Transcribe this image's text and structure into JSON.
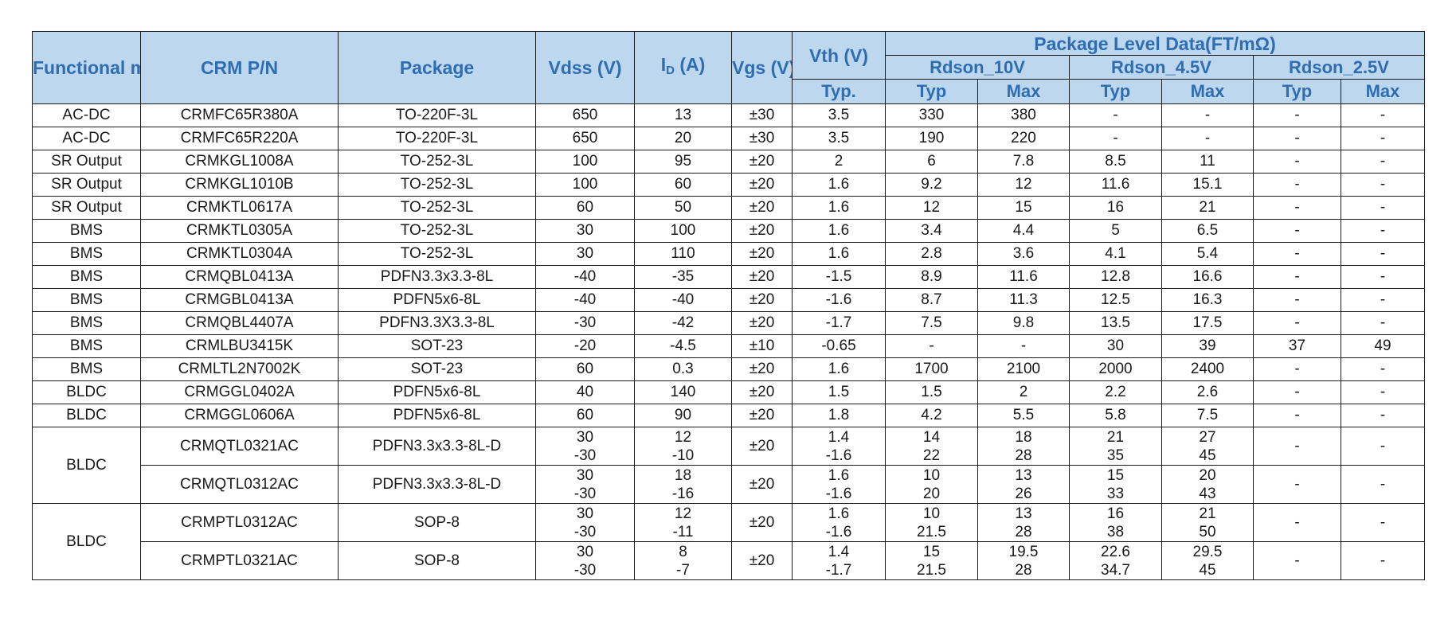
{
  "headers": {
    "functional_module": [
      "Functional",
      "module"
    ],
    "crm_pn": "CRM P/N",
    "package": "Package",
    "vdss": "Vdss (V)",
    "id": {
      "base": "I",
      "sub": "D",
      "unit": "(A)"
    },
    "vgs": [
      "Vgs",
      "(V)"
    ],
    "vth": "Vth (V)",
    "vth_sub": "Typ.",
    "package_level": "Package Level Data(FT/mΩ)",
    "rdson_10v": "Rdson_10V",
    "rdson_4v5": "Rdson_4.5V",
    "rdson_2v5": "Rdson_2.5V",
    "typ": "Typ",
    "max": "Max"
  },
  "rows": [
    {
      "module": "AC-DC",
      "pn": "CRMFC65R380A",
      "pkg": "TO-220F-3L",
      "vdss": "650",
      "id": "13",
      "vgs": "±30",
      "vth": "3.5",
      "r10t": "330",
      "r10m": "380",
      "r45t": "-",
      "r45m": "-",
      "r25t": "-",
      "r25m": "-"
    },
    {
      "module": "AC-DC",
      "pn": "CRMFC65R220A",
      "pkg": "TO-220F-3L",
      "vdss": "650",
      "id": "20",
      "vgs": "±30",
      "vth": "3.5",
      "r10t": "190",
      "r10m": "220",
      "r45t": "-",
      "r45m": "-",
      "r25t": "-",
      "r25m": "-"
    },
    {
      "module": "SR Output",
      "pn": "CRMKGL1008A",
      "pkg": "TO-252-3L",
      "vdss": "100",
      "id": "95",
      "vgs": "±20",
      "vth": "2",
      "r10t": "6",
      "r10m": "7.8",
      "r45t": "8.5",
      "r45m": "11",
      "r25t": "-",
      "r25m": "-"
    },
    {
      "module": "SR Output",
      "pn": "CRMKGL1010B",
      "pkg": "TO-252-3L",
      "vdss": "100",
      "id": "60",
      "vgs": "±20",
      "vth": "1.6",
      "r10t": "9.2",
      "r10m": "12",
      "r45t": "11.6",
      "r45m": "15.1",
      "r25t": "-",
      "r25m": "-"
    },
    {
      "module": "SR Output",
      "pn": "CRMKTL0617A",
      "pkg": "TO-252-3L",
      "vdss": "60",
      "id": "50",
      "vgs": "±20",
      "vth": "1.6",
      "r10t": "12",
      "r10m": "15",
      "r45t": "16",
      "r45m": "21",
      "r25t": "-",
      "r25m": "-"
    },
    {
      "module": "BMS",
      "pn": "CRMKTL0305A",
      "pkg": "TO-252-3L",
      "vdss": "30",
      "id": "100",
      "vgs": "±20",
      "vth": "1.6",
      "r10t": "3.4",
      "r10m": "4.4",
      "r45t": "5",
      "r45m": "6.5",
      "r25t": "-",
      "r25m": "-"
    },
    {
      "module": "BMS",
      "pn": "CRMKTL0304A",
      "pkg": "TO-252-3L",
      "vdss": "30",
      "id": "110",
      "vgs": "±20",
      "vth": "1.6",
      "r10t": "2.8",
      "r10m": "3.6",
      "r45t": "4.1",
      "r45m": "5.4",
      "r25t": "-",
      "r25m": "-"
    },
    {
      "module": "BMS",
      "pn": "CRMQBL0413A",
      "pkg": "PDFN3.3x3.3-8L",
      "vdss": "-40",
      "id": "-35",
      "vgs": "±20",
      "vth": "-1.5",
      "r10t": "8.9",
      "r10m": "11.6",
      "r45t": "12.8",
      "r45m": "16.6",
      "r25t": "-",
      "r25m": "-"
    },
    {
      "module": "BMS",
      "pn": "CRMGBL0413A",
      "pkg": "PDFN5x6-8L",
      "vdss": "-40",
      "id": "-40",
      "vgs": "±20",
      "vth": "-1.6",
      "r10t": "8.7",
      "r10m": "11.3",
      "r45t": "12.5",
      "r45m": "16.3",
      "r25t": "-",
      "r25m": "-"
    },
    {
      "module": "BMS",
      "pn": "CRMQBL4407A",
      "pkg": "PDFN3.3X3.3-8L",
      "vdss": "-30",
      "id": "-42",
      "vgs": "±20",
      "vth": "-1.7",
      "r10t": "7.5",
      "r10m": "9.8",
      "r45t": "13.5",
      "r45m": "17.5",
      "r25t": "-",
      "r25m": "-"
    },
    {
      "module": "BMS",
      "pn": "CRMLBU3415K",
      "pkg": "SOT-23",
      "vdss": "-20",
      "id": "-4.5",
      "vgs": "±10",
      "vth": "-0.65",
      "r10t": "-",
      "r10m": "-",
      "r45t": "30",
      "r45m": "39",
      "r25t": "37",
      "r25m": "49"
    },
    {
      "module": "BMS",
      "pn": "CRMLTL2N7002K",
      "pkg": "SOT-23",
      "vdss": "60",
      "id": "0.3",
      "vgs": "±20",
      "vth": "1.6",
      "r10t": "1700",
      "r10m": "2100",
      "r45t": "2000",
      "r45m": "2400",
      "r25t": "-",
      "r25m": "-"
    },
    {
      "module": "BLDC",
      "pn": "CRMGGL0402A",
      "pkg": "PDFN5x6-8L",
      "vdss": "40",
      "id": "140",
      "vgs": "±20",
      "vth": "1.5",
      "r10t": "1.5",
      "r10m": "2",
      "r45t": "2.2",
      "r45m": "2.6",
      "r25t": "-",
      "r25m": "-"
    },
    {
      "module": "BLDC",
      "pn": "CRMGGL0606A",
      "pkg": "PDFN5x6-8L",
      "vdss": "60",
      "id": "90",
      "vgs": "±20",
      "vth": "1.8",
      "r10t": "4.2",
      "r10m": "5.5",
      "r45t": "5.8",
      "r45m": "7.5",
      "r25t": "-",
      "r25m": "-"
    }
  ],
  "groups": [
    {
      "module": "BLDC",
      "rows": [
        {
          "pn": "CRMQTL0321AC",
          "pkg": "PDFN3.3x3.3-8L-D",
          "vdss": [
            "30",
            "-30"
          ],
          "id": [
            "12",
            "-10"
          ],
          "vgs": "±20",
          "vth": [
            "1.4",
            "-1.6"
          ],
          "r10t": [
            "14",
            "22"
          ],
          "r10m": [
            "18",
            "28"
          ],
          "r45t": [
            "21",
            "35"
          ],
          "r45m": [
            "27",
            "45"
          ],
          "r25t": "-",
          "r25m": "-"
        },
        {
          "pn": "CRMQTL0312AC",
          "pkg": "PDFN3.3x3.3-8L-D",
          "vdss": [
            "30",
            "-30"
          ],
          "id": [
            "18",
            "-16"
          ],
          "vgs": "±20",
          "vth": [
            "1.6",
            "-1.6"
          ],
          "r10t": [
            "10",
            "20"
          ],
          "r10m": [
            "13",
            "26"
          ],
          "r45t": [
            "15",
            "33"
          ],
          "r45m": [
            "20",
            "43"
          ],
          "r25t": "-",
          "r25m": "-"
        }
      ]
    },
    {
      "module": "BLDC",
      "rows": [
        {
          "pn": "CRMPTL0312AC",
          "pkg": "SOP-8",
          "vdss": [
            "30",
            "-30"
          ],
          "id": [
            "12",
            "-11"
          ],
          "vgs": "±20",
          "vth": [
            "1.6",
            "-1.6"
          ],
          "r10t": [
            "10",
            "21.5"
          ],
          "r10m": [
            "13",
            "28"
          ],
          "r45t": [
            "16",
            "38"
          ],
          "r45m": [
            "21",
            "50"
          ],
          "r25t": "-",
          "r25m": "-"
        },
        {
          "pn": "CRMPTL0321AC",
          "pkg": "SOP-8",
          "vdss": [
            "30",
            "-30"
          ],
          "id": [
            "8",
            "-7"
          ],
          "vgs": "±20",
          "vth": [
            "1.4",
            "-1.7"
          ],
          "r10t": [
            "15",
            "21.5"
          ],
          "r10m": [
            "19.5",
            "28"
          ],
          "r45t": [
            "22.6",
            "34.7"
          ],
          "r45m": [
            "29.5",
            "45"
          ],
          "r25t": "-",
          "r25m": "-"
        }
      ]
    }
  ],
  "colors": {
    "header_bg": "#bdd7ee",
    "header_text": "#2f6db3",
    "red_dash": "#e0201a"
  }
}
